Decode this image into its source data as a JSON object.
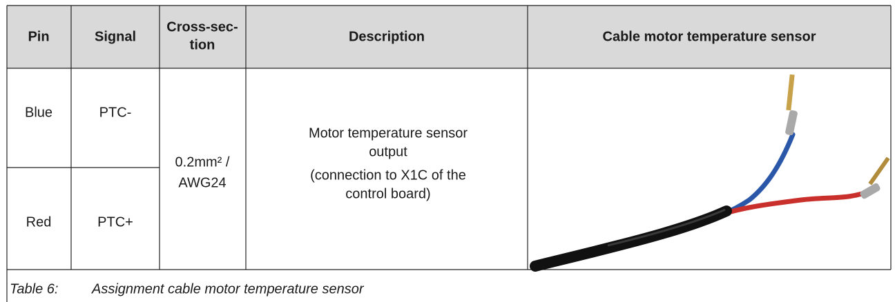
{
  "table": {
    "header": [
      "Pin",
      "Signal",
      [
        "Cross-sec-",
        "tion"
      ],
      "Description",
      "Cable motor temperature sensor"
    ],
    "rows": [
      [
        "Blue",
        "PTC-"
      ],
      [
        "Red",
        "PTC+"
      ]
    ],
    "cross_section": [
      "0.2mm² /",
      "AWG24"
    ],
    "description": [
      "Motor temperature sensor",
      "output",
      "(connection to X1C of the",
      "control board)"
    ]
  },
  "caption": {
    "number": "Table 6:",
    "text": "Assignment cable motor temperature sensor"
  }
}
